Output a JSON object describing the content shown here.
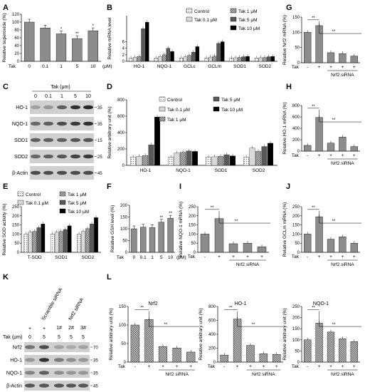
{
  "figure": {
    "panel_letters": [
      "A",
      "B",
      "C",
      "D",
      "E",
      "F",
      "G",
      "H",
      "I",
      "J",
      "K",
      "L"
    ]
  },
  "colors": {
    "control": "#f2f2f2",
    "tak01": "#d9d9d9",
    "tak1": "#a6a6a6",
    "tak5": "#595959",
    "tak10": "#000000",
    "bar_gray": "#8c8c8c",
    "blot_bg": "#d0d0d0"
  },
  "common": {
    "tak_label": "Tak",
    "nrf2_sirna": "Nrf2 siRNA",
    "sig2": "**",
    "sig1": "*",
    "legend": [
      "Control",
      "Tak 0.1 μM",
      "Tak 1 μM",
      "Tak 5 μM",
      "Tak 10 μM"
    ]
  },
  "panel_c": {
    "header": "Tak (μm)",
    "doses": [
      "0",
      "0.1",
      "1",
      "5",
      "10"
    ],
    "rows": [
      {
        "label": "HO-1",
        "marker": "35"
      },
      {
        "label": "NQO-1",
        "marker": "35"
      },
      {
        "label": "SOD1",
        "marker": "15"
      },
      {
        "label": "SOD2",
        "marker": "25"
      },
      {
        "label": "β-Actin",
        "marker": "45"
      }
    ]
  },
  "panel_k": {
    "col_headers": [
      "Scramble siRNA",
      "Nrf2 siRNA"
    ],
    "lane_ids": [
      "1#",
      "2#",
      "3#"
    ],
    "tak_row": [
      "-",
      "+"
    ],
    "dose_row_label": "Tak (μm)",
    "doses": [
      "0",
      "5",
      "5",
      "5",
      "5"
    ],
    "rows": [
      {
        "label": "Nrf2",
        "marker": "70"
      },
      {
        "label": "HO-1",
        "marker": "35"
      },
      {
        "label": "NQO-1",
        "marker": "35"
      },
      {
        "label": "β-Actin",
        "marker": "45"
      }
    ]
  },
  "chart_data": [
    {
      "panel": "A",
      "type": "bar",
      "ylabel": "Relative superoxide (%)",
      "xlabel": "Tak",
      "x_unit": "(μM)",
      "categories": [
        "0",
        "0.1",
        "1",
        "5",
        "10"
      ],
      "values": [
        100,
        85,
        70,
        58,
        78
      ],
      "ylim": [
        0,
        120
      ],
      "yticks": [
        0,
        20,
        40,
        60,
        80,
        100,
        120
      ],
      "sig": [
        "",
        "",
        "*",
        "**",
        "*"
      ]
    },
    {
      "panel": "B",
      "type": "bar",
      "ylabel": "Relative mRNA level",
      "categories": [
        "HO-1",
        "NQO-1",
        "GCLc",
        "GCLm",
        "SOD1",
        "SOD2"
      ],
      "series": [
        {
          "name": "Control",
          "values": [
            1,
            1,
            1,
            1,
            1,
            1
          ]
        },
        {
          "name": "Tak 0.1 μM",
          "values": [
            1.2,
            1.5,
            1.4,
            1.3,
            1.1,
            1.1
          ]
        },
        {
          "name": "Tak 1 μM",
          "values": [
            1.5,
            2,
            1.8,
            1.6,
            1.2,
            1.2
          ]
        },
        {
          "name": "Tak 5 μM",
          "values": [
            10,
            4,
            2.8,
            5.5,
            1.4,
            1.4
          ]
        },
        {
          "name": "Tak 10 μM",
          "values": [
            12,
            3,
            4.5,
            6,
            1.5,
            1.5
          ]
        }
      ],
      "yticks": [
        0,
        2,
        4,
        6
      ]
    },
    {
      "panel": "D",
      "type": "bar",
      "ylabel": "Relative arbitrary unit (%)",
      "categories": [
        "HO-1",
        "NQO-1",
        "SOD1",
        "SOD2"
      ],
      "series": [
        {
          "name": "Control",
          "values": [
            100,
            100,
            100,
            100
          ]
        },
        {
          "name": "Tak 0.1 μM",
          "values": [
            110,
            150,
            105,
            210
          ]
        },
        {
          "name": "Tak 1 μM",
          "values": [
            120,
            160,
            110,
            170
          ]
        },
        {
          "name": "Tak 5 μM",
          "values": [
            250,
            175,
            130,
            230
          ]
        },
        {
          "name": "Tak 10 μM",
          "values": [
            590,
            170,
            115,
            270
          ]
        }
      ],
      "ylim": [
        0,
        800
      ],
      "yticks": [
        0,
        200,
        400,
        600,
        800
      ]
    },
    {
      "panel": "E",
      "type": "bar",
      "ylabel": "Relative SOD activity (%)",
      "categories": [
        "T-SOD",
        "SOD1",
        "SOD2"
      ],
      "series": [
        {
          "name": "Control",
          "values": [
            100,
            100,
            100
          ]
        },
        {
          "name": "Tak 0.1 μM",
          "values": [
            110,
            110,
            115
          ]
        },
        {
          "name": "Tak 1 μM",
          "values": [
            115,
            115,
            130
          ]
        },
        {
          "name": "Tak 5 μM",
          "values": [
            135,
            125,
            155
          ]
        },
        {
          "name": "Tak 10 μM",
          "values": [
            155,
            145,
            190
          ]
        }
      ],
      "ylim": [
        0,
        250
      ],
      "yticks": [
        0,
        50,
        100,
        150,
        200,
        250
      ]
    },
    {
      "panel": "F",
      "type": "bar",
      "ylabel": "Relative GSH level (%)",
      "xlabel": "Tak",
      "x_unit": "(μM)",
      "categories": [
        "0",
        "0.1",
        "1",
        "5",
        "10"
      ],
      "values": [
        100,
        107,
        105,
        128,
        145
      ],
      "ylim": [
        0,
        200
      ],
      "yticks": [
        0,
        50,
        100,
        150,
        200
      ],
      "sig": [
        "",
        "",
        "",
        "**",
        "**"
      ]
    },
    {
      "panel": "G",
      "type": "bar",
      "ylabel": "Relative Nrf2 mRNA (%)",
      "tak": [
        "-",
        "+",
        "+",
        "+",
        "+"
      ],
      "values": [
        100,
        122,
        33,
        30,
        22
      ],
      "ylim": [
        0,
        150
      ],
      "yticks": [
        0,
        50,
        100,
        150
      ]
    },
    {
      "panel": "H",
      "type": "bar",
      "ylabel": "Relative HO-1 mRNA (%)",
      "tak": [
        "-",
        "+",
        "+",
        "+",
        "+"
      ],
      "values": [
        100,
        590,
        140,
        245,
        80
      ],
      "ylim": [
        0,
        800
      ],
      "yticks": [
        0,
        200,
        400,
        600,
        800
      ]
    },
    {
      "panel": "I",
      "type": "bar",
      "ylabel": "Relative NQO-1 mRNA (%)",
      "tak": [
        "-",
        "+",
        "+",
        "+",
        "+"
      ],
      "values": [
        100,
        185,
        47,
        50,
        30
      ],
      "ylim": [
        0,
        250
      ],
      "yticks": [
        0,
        50,
        100,
        150,
        200,
        250
      ]
    },
    {
      "panel": "J",
      "type": "bar",
      "ylabel": "Relative GCLm mRNA (%)",
      "tak": [
        "-",
        "+",
        "+",
        "+",
        "+"
      ],
      "values": [
        100,
        195,
        72,
        85,
        50
      ],
      "ylim": [
        0,
        250
      ],
      "yticks": [
        0,
        50,
        100,
        150,
        200,
        250
      ]
    },
    {
      "panel": "L",
      "type": "bar",
      "title": "Nrf2",
      "ylabel": "Relative arbitrary unit (%)",
      "tak": [
        "-",
        "+",
        "+",
        "+",
        "+"
      ],
      "values": [
        100,
        115,
        42,
        38,
        27
      ],
      "ylim": [
        0,
        150
      ],
      "yticks": [
        0,
        50,
        100,
        150
      ]
    },
    {
      "panel": "L",
      "type": "bar",
      "title": "HO-1",
      "ylabel": "Relative arbitrary unit (%)",
      "tak": [
        "-",
        "+",
        "+",
        "+",
        "+"
      ],
      "values": [
        100,
        620,
        240,
        120,
        110
      ],
      "ylim": [
        0,
        800
      ],
      "yticks": [
        0,
        200,
        400,
        600,
        800
      ]
    },
    {
      "panel": "L",
      "type": "bar",
      "title": "NQO-1",
      "ylabel": "Relative arbitrary unit (%)",
      "tak": [
        "-",
        "+",
        "+",
        "+",
        "+"
      ],
      "values": [
        100,
        175,
        135,
        105,
        92
      ],
      "ylim": [
        0,
        250
      ],
      "yticks": [
        0,
        50,
        100,
        150,
        200,
        250
      ]
    }
  ]
}
